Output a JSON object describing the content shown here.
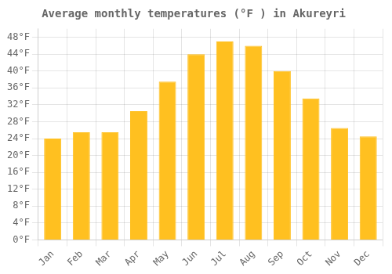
{
  "chart_data": {
    "type": "bar",
    "title": "Average monthly temperatures (°F ) in Akureyri",
    "categories": [
      "Jan",
      "Feb",
      "Mar",
      "Apr",
      "May",
      "Jun",
      "Jul",
      "Aug",
      "Sep",
      "Oct",
      "Nov",
      "Dec"
    ],
    "values": [
      24,
      25.5,
      25.5,
      30.5,
      37.5,
      44,
      47,
      46,
      40,
      33.5,
      26.5,
      24.5
    ],
    "color": "#FFC020",
    "ylim": [
      0,
      50
    ],
    "yticks": [
      {
        "value": 0,
        "label": "0°F"
      },
      {
        "value": 4,
        "label": "4°F"
      },
      {
        "value": 8,
        "label": "8°F"
      },
      {
        "value": 12,
        "label": "12°F"
      },
      {
        "value": 16,
        "label": "16°F"
      },
      {
        "value": 20,
        "label": "20°F"
      },
      {
        "value": 24,
        "label": "24°F"
      },
      {
        "value": 28,
        "label": "28°F"
      },
      {
        "value": 32,
        "label": "32°F"
      },
      {
        "value": 36,
        "label": "36°F"
      },
      {
        "value": 40,
        "label": "40°F"
      },
      {
        "value": 44,
        "label": "44°F"
      },
      {
        "value": 48,
        "label": "48°F"
      }
    ],
    "grid": true
  }
}
